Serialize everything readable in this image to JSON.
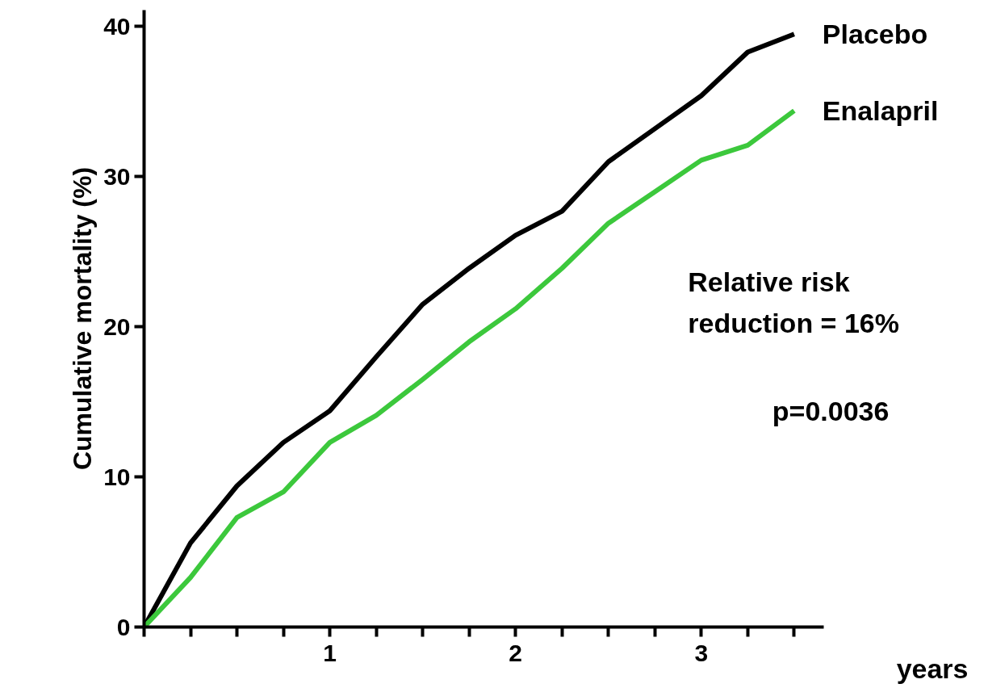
{
  "chart_data": {
    "type": "line",
    "xlabel": "years",
    "ylabel": "Cumulative mortality (%)",
    "x": [
      0,
      0.25,
      0.5,
      0.75,
      1,
      1.25,
      1.5,
      1.75,
      2,
      2.25,
      2.5,
      2.75,
      3,
      3.25,
      3.5
    ],
    "series": [
      {
        "name": "Placebo",
        "color": "#000000",
        "values": [
          0,
          5.6,
          9.4,
          12.3,
          14.4,
          18.0,
          21.5,
          23.9,
          26.1,
          27.7,
          31.0,
          33.2,
          35.4,
          38.3,
          39.5
        ]
      },
      {
        "name": "Enalapril",
        "color": "#3cc83c",
        "values": [
          0,
          3.3,
          7.3,
          9.0,
          12.3,
          14.1,
          16.5,
          19.0,
          21.2,
          23.9,
          26.9,
          29.0,
          31.1,
          32.1,
          34.4
        ]
      }
    ],
    "xlim": [
      0,
      3.66
    ],
    "ylim": [
      0,
      41.1
    ],
    "xticks": [
      {
        "value": 0,
        "label": null
      },
      {
        "value": 0.25,
        "label": null
      },
      {
        "value": 0.5,
        "label": null
      },
      {
        "value": 0.75,
        "label": null
      },
      1,
      {
        "value": 1.25,
        "label": null
      },
      {
        "value": 1.5,
        "label": null
      },
      {
        "value": 1.75,
        "label": null
      },
      2,
      {
        "value": 2.25,
        "label": null
      },
      {
        "value": 2.5,
        "label": null
      },
      {
        "value": 2.75,
        "label": null
      },
      3,
      {
        "value": 3.25,
        "label": null
      },
      {
        "value": 3.5,
        "label": null
      }
    ],
    "yticks": [
      0,
      10,
      20,
      30,
      40
    ],
    "annotations": [
      "Relative risk\nreduction = 16%",
      "p=0.0036"
    ],
    "grid": false,
    "legend": false,
    "marker": "none",
    "line_style": "solid"
  }
}
